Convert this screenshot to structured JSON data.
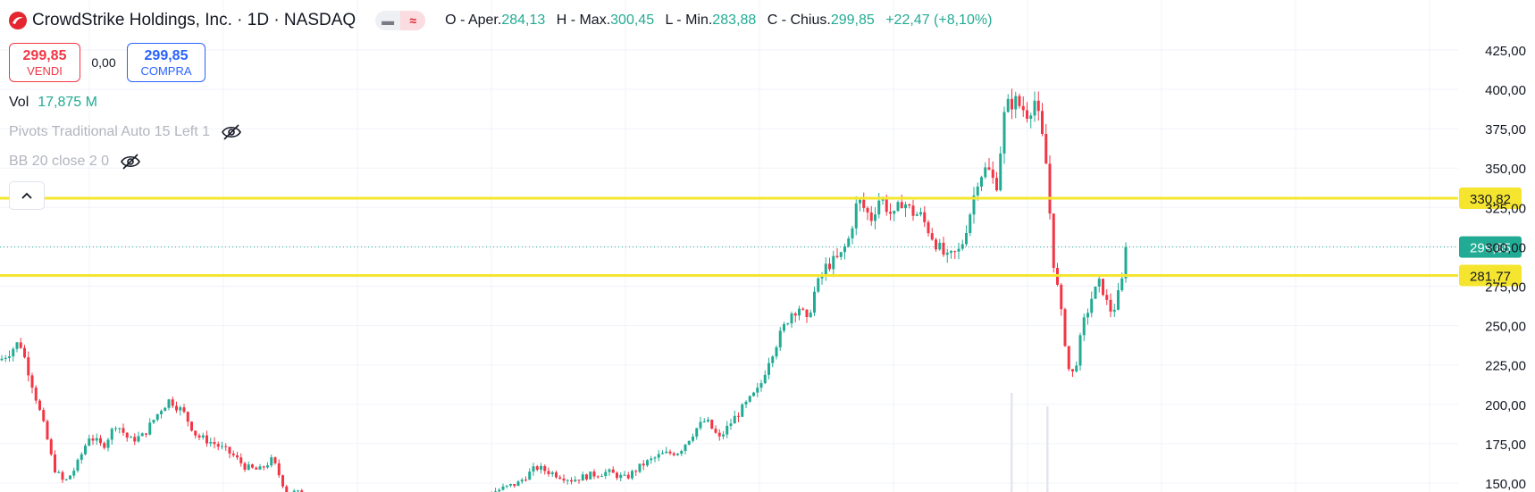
{
  "header": {
    "symbol_title": "CrowdStrike Holdings, Inc. · 1D · NASDAQ",
    "ohlc": {
      "open_label": "O - Aper.",
      "open": "284,13",
      "high_label": "H - Max.",
      "high": "300,45",
      "low_label": "L - Min.",
      "low": "283,88",
      "close_label": "C - Chius.",
      "close": "299,85",
      "change": "+22,47 (+8,10%)"
    },
    "toggle_left": "▬",
    "toggle_right": "≈"
  },
  "trade": {
    "sell_price": "299,85",
    "sell_label": "VENDI",
    "spread": "0,00",
    "buy_price": "299,85",
    "buy_label": "COMPRA"
  },
  "volume": {
    "label": "Vol",
    "value": "17,875 M"
  },
  "indicators": [
    {
      "label": "Pivots Traditional Auto 15 Left 1",
      "icon": "eye-off-icon"
    },
    {
      "label": "BB 20 close 2 0",
      "icon": "eye-off-icon"
    }
  ],
  "collapse_icon": "chevron-up-icon",
  "colors": {
    "up": "#22ab94",
    "down": "#f23645",
    "level_line": "#f5e52f",
    "last_price_tag": "#22ab94",
    "grid": "#f0f3fa"
  },
  "chart_data": {
    "type": "candlestick",
    "title": "CrowdStrike Holdings, Inc. · 1D · NASDAQ",
    "y_ticks": [
      "150,00",
      "175,00",
      "200,00",
      "225,00",
      "250,00",
      "275,00",
      "300,00",
      "325,00",
      "350,00",
      "375,00",
      "400,00",
      "425,00"
    ],
    "y_tick_values": [
      150,
      175,
      200,
      225,
      250,
      275,
      300,
      325,
      350,
      375,
      400,
      425
    ],
    "ylim": [
      148,
      430
    ],
    "grid": true,
    "horizontal_levels": [
      {
        "label": "330,82",
        "value": 330.82
      },
      {
        "label": "281,77",
        "value": 281.77
      }
    ],
    "last_price": {
      "label": "299,85",
      "value": 299.85
    },
    "keypoints": [
      [
        0,
        228
      ],
      [
        10,
        233
      ],
      [
        22,
        240
      ],
      [
        35,
        215
      ],
      [
        52,
        180
      ],
      [
        60,
        160
      ],
      [
        72,
        150
      ],
      [
        85,
        160
      ],
      [
        100,
        180
      ],
      [
        115,
        173
      ],
      [
        130,
        188
      ],
      [
        145,
        177
      ],
      [
        160,
        180
      ],
      [
        180,
        197
      ],
      [
        190,
        203
      ],
      [
        205,
        195
      ],
      [
        220,
        180
      ],
      [
        240,
        175
      ],
      [
        260,
        168
      ],
      [
        275,
        160
      ],
      [
        290,
        158
      ],
      [
        305,
        165
      ],
      [
        320,
        145
      ],
      [
        340,
        143
      ],
      [
        360,
        140
      ],
      [
        380,
        138
      ],
      [
        420,
        136
      ],
      [
        460,
        137
      ],
      [
        520,
        138
      ],
      [
        580,
        150
      ],
      [
        600,
        160
      ],
      [
        620,
        156
      ],
      [
        640,
        152
      ],
      [
        660,
        155
      ],
      [
        680,
        157
      ],
      [
        700,
        153
      ],
      [
        720,
        162
      ],
      [
        740,
        168
      ],
      [
        760,
        170
      ],
      [
        780,
        185
      ],
      [
        790,
        190
      ],
      [
        805,
        178
      ],
      [
        820,
        190
      ],
      [
        835,
        200
      ],
      [
        850,
        210
      ],
      [
        860,
        228
      ],
      [
        870,
        240
      ],
      [
        885,
        258
      ],
      [
        895,
        262
      ],
      [
        903,
        252
      ],
      [
        912,
        272
      ],
      [
        925,
        288
      ],
      [
        940,
        293
      ],
      [
        950,
        305
      ],
      [
        960,
        330
      ],
      [
        975,
        318
      ],
      [
        985,
        332
      ],
      [
        1000,
        318
      ],
      [
        1010,
        330
      ],
      [
        1020,
        322
      ],
      [
        1030,
        320
      ],
      [
        1040,
        310
      ],
      [
        1050,
        300
      ],
      [
        1060,
        292
      ],
      [
        1075,
        298
      ],
      [
        1085,
        320
      ],
      [
        1095,
        345
      ],
      [
        1105,
        350
      ],
      [
        1115,
        338
      ],
      [
        1125,
        388
      ],
      [
        1135,
        393
      ],
      [
        1150,
        385
      ],
      [
        1158,
        393
      ],
      [
        1165,
        374
      ],
      [
        1172,
        348
      ],
      [
        1178,
        295
      ],
      [
        1185,
        268
      ],
      [
        1192,
        240
      ],
      [
        1198,
        215
      ],
      [
        1205,
        228
      ],
      [
        1212,
        250
      ],
      [
        1222,
        268
      ],
      [
        1232,
        278
      ],
      [
        1238,
        265
      ],
      [
        1245,
        258
      ],
      [
        1252,
        270
      ],
      [
        1259,
        285
      ],
      [
        1262,
        299.85
      ]
    ],
    "volume_spikes": [
      {
        "x": 1132,
        "top": 440
      },
      {
        "x": 1172,
        "top": 455
      }
    ]
  }
}
